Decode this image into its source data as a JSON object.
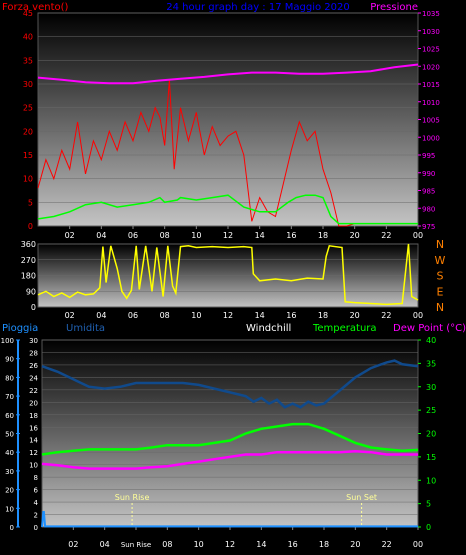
{
  "chart_data": [
    {
      "type": "line",
      "panel": "wind-pressure",
      "title": "24 hour graph day : 17 Maggio 2020",
      "left_axis_label": "Forza vento()",
      "right_axis_label": "Pressione",
      "x_tick_labels": [
        "02",
        "04",
        "06",
        "08",
        "10",
        "12",
        "14",
        "16",
        "18",
        "20",
        "22",
        "00"
      ],
      "left_ticks": [
        0,
        5,
        10,
        15,
        20,
        25,
        30,
        35,
        40,
        45
      ],
      "right_ticks": [
        975,
        980,
        985,
        990,
        995,
        1000,
        1005,
        1010,
        1015,
        1020,
        1025,
        1030,
        1035
      ],
      "ylim_left": [
        0,
        45
      ],
      "ylim_right": [
        975,
        1035
      ],
      "colors": {
        "gust": "#ff0000",
        "wind": "#00ff00",
        "pressure": "#ff00ff",
        "left_axis": "#ff0000",
        "right_axis": "#ff00ff",
        "title": "#0000ff"
      },
      "series": [
        {
          "key": "pressure",
          "hours": [
            0,
            1.5,
            3,
            4.5,
            6,
            7.5,
            9,
            10.5,
            12,
            13.5,
            15,
            16.5,
            18,
            19.5,
            21,
            22.5,
            24
          ],
          "values": [
            1016.8,
            1016.2,
            1015.5,
            1015.2,
            1015.2,
            1015.9,
            1016.5,
            1017.0,
            1017.7,
            1018.2,
            1018.2,
            1017.9,
            1017.9,
            1018.2,
            1018.6,
            1019.7,
            1020.5
          ]
        },
        {
          "key": "wind",
          "hours": [
            0,
            1,
            2,
            3,
            4,
            5,
            6,
            7,
            7.7,
            8,
            8.8,
            9,
            10,
            11,
            12,
            13,
            14,
            15,
            15.8,
            16.3,
            16.9,
            17.5,
            18,
            18.5,
            19,
            19.5,
            20,
            24
          ],
          "values": [
            1.5,
            2,
            3,
            4.5,
            5,
            4,
            4.5,
            5,
            6,
            5,
            5.5,
            6,
            5.5,
            6,
            6.5,
            4,
            3,
            3,
            5,
            6,
            6.5,
            6.5,
            6,
            2,
            0.5,
            0.5,
            0.5,
            0.5
          ]
        },
        {
          "key": "gust",
          "hours": [
            0,
            0.5,
            1,
            1.5,
            2,
            2.5,
            3,
            3.5,
            4,
            4.5,
            5,
            5.5,
            6,
            6.5,
            7,
            7.4,
            7.7,
            8,
            8.3,
            8.6,
            9,
            9.5,
            10,
            10.5,
            11,
            11.5,
            12,
            12.5,
            13,
            13.5,
            14,
            14.5,
            15,
            15.5,
            16,
            16.5,
            17,
            17.5,
            18,
            18.5,
            19,
            19.5,
            20,
            24
          ],
          "values": [
            8,
            14,
            10,
            16,
            12,
            22,
            11,
            18,
            14,
            20,
            16,
            22,
            18,
            24,
            20,
            25,
            23,
            17,
            31,
            12,
            25,
            18,
            24,
            15,
            21,
            17,
            19,
            20,
            15,
            1,
            6,
            3,
            2,
            9,
            16,
            22,
            18,
            20,
            12,
            7,
            0,
            0,
            0.5,
            0.5
          ]
        }
      ]
    },
    {
      "type": "line",
      "panel": "wind-direction",
      "x_tick_labels": [
        "02",
        "04",
        "06",
        "08",
        "10",
        "12",
        "14",
        "16",
        "18",
        "20",
        "22",
        "00"
      ],
      "left_ticks": [
        0,
        90,
        180,
        270,
        360
      ],
      "right_ticks": [
        "N",
        "W",
        "S",
        "E",
        "N"
      ],
      "ylim": [
        0,
        360
      ],
      "colors": {
        "direction": "#ffff00",
        "right_axis": "#ff8000"
      },
      "series": [
        {
          "key": "direction",
          "hours": [
            0,
            0.5,
            1,
            1.5,
            2,
            2.5,
            3,
            3.5,
            3.9,
            4.1,
            4.3,
            4.6,
            5,
            5.3,
            5.6,
            5.9,
            6.2,
            6.4,
            6.8,
            7.2,
            7.5,
            7.9,
            8.2,
            8.5,
            8.7,
            9,
            9.5,
            10,
            11,
            12,
            13,
            13.5,
            13.6,
            14,
            15,
            16,
            17,
            18,
            18.2,
            18.4,
            19.2,
            19.4,
            20,
            21,
            22,
            23,
            23.4,
            23.6,
            24
          ],
          "values": [
            70,
            90,
            60,
            80,
            55,
            85,
            70,
            75,
            110,
            345,
            140,
            350,
            220,
            90,
            50,
            95,
            350,
            100,
            350,
            90,
            340,
            60,
            350,
            120,
            80,
            345,
            350,
            340,
            345,
            340,
            345,
            340,
            190,
            150,
            160,
            150,
            165,
            160,
            290,
            350,
            340,
            30,
            25,
            20,
            15,
            20,
            360,
            60,
            40
          ]
        }
      ]
    },
    {
      "type": "line",
      "panel": "temperature-humidity",
      "labels": {
        "rain": "Pioggia",
        "humidity": "Umidita",
        "windchill": "Windchill",
        "temperature": "Temperatura",
        "dewpoint": "Dew Point (°C)",
        "sunrise": "Sun Rise",
        "sunset": "Sun Set"
      },
      "x_tick_labels": [
        "02",
        "04",
        "Sun Rise",
        "08",
        "10",
        "12",
        "14",
        "16",
        "18",
        "20",
        "22",
        "00"
      ],
      "rain_ticks": [
        0,
        10,
        20,
        30,
        40,
        50,
        60,
        70,
        80,
        90,
        100
      ],
      "left_ticks": [
        0,
        2,
        4,
        6,
        8,
        10,
        12,
        14,
        16,
        18,
        20,
        22,
        24,
        26,
        28,
        30
      ],
      "right_ticks": [
        0,
        5,
        10,
        15,
        20,
        25,
        30,
        35,
        40
      ],
      "ylim_left": [
        0,
        30
      ],
      "ylim_right": [
        0,
        40
      ],
      "sunrise_hour": 5.75,
      "sunset_hour": 20.4,
      "colors": {
        "rain_axis": "#0070ff",
        "humidity_axis": "#2060b0",
        "windchill_label": "#ffffff",
        "temperature": "#00ff00",
        "dewpoint": "#ff00ff",
        "humidity": "#104a8c",
        "rain": "#1e90ff",
        "sun_marker": "#ffff99",
        "right_axis": "#00ff00"
      },
      "series": [
        {
          "key": "humidity",
          "hours": [
            0,
            1,
            2,
            3,
            4,
            5,
            6,
            7,
            8,
            9,
            10,
            11,
            12,
            13,
            13.5,
            14,
            14.5,
            15,
            15.5,
            16,
            16.5,
            17,
            17.5,
            18,
            19,
            20,
            21,
            22,
            22.5,
            23,
            24
          ],
          "values": [
            86,
            83,
            79,
            75,
            74,
            75,
            77,
            77,
            77,
            77,
            76,
            74,
            72,
            70,
            67,
            69,
            66,
            68,
            64,
            66,
            64,
            67,
            65,
            66,
            73,
            80,
            85,
            88,
            89,
            87,
            86
          ]
        },
        {
          "key": "temperature",
          "hours": [
            0,
            1,
            2,
            3,
            4,
            5,
            6,
            7,
            8,
            9,
            10,
            11,
            12,
            13,
            14,
            15,
            16,
            17,
            18,
            19,
            20,
            21,
            22,
            23,
            24
          ],
          "values": [
            15.5,
            16,
            16.3,
            16.6,
            16.6,
            16.6,
            16.6,
            17,
            17.5,
            17.5,
            17.5,
            18,
            18.5,
            20,
            21,
            21.5,
            22,
            22,
            21,
            19.5,
            18,
            17,
            16.6,
            16.3,
            16.5
          ]
        },
        {
          "key": "dewpoint",
          "hours": [
            0,
            1,
            2,
            3,
            4,
            5,
            6,
            7,
            8,
            9,
            10,
            11,
            12,
            13,
            14,
            15,
            16,
            17,
            18,
            19,
            20,
            21,
            22,
            23,
            24
          ],
          "values": [
            13.5,
            13.2,
            12.8,
            12.5,
            12.5,
            12.5,
            12.5,
            12.8,
            13,
            13.5,
            14,
            14.5,
            15,
            15.5,
            15.5,
            16,
            16,
            16,
            16,
            16,
            16.2,
            16,
            15.5,
            15.5,
            15.5
          ]
        },
        {
          "key": "rain",
          "hours": [
            0,
            0.08,
            0.12,
            0.2,
            24
          ],
          "values": [
            0,
            8,
            8,
            0.3,
            0.3
          ]
        }
      ]
    }
  ]
}
